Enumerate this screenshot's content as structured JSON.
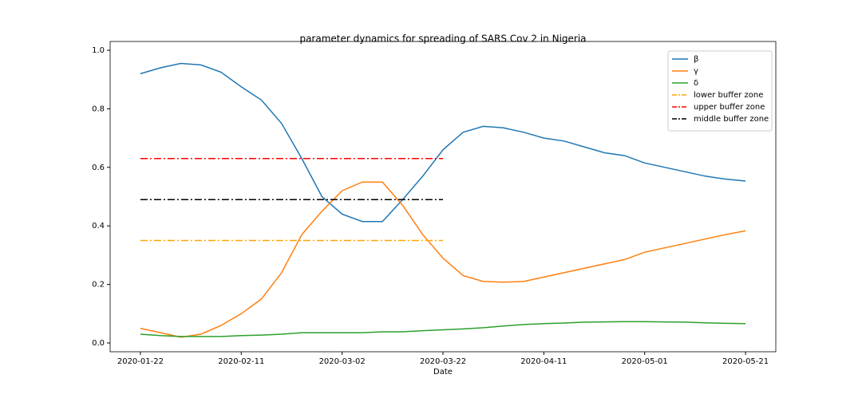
{
  "chart_data": {
    "type": "line",
    "title": "parameter dynamics for spreading of SARS Cov 2 in Nigeria",
    "x_label": "Date",
    "x": [
      "2020-01-22",
      "2020-01-26",
      "2020-01-30",
      "2020-02-03",
      "2020-02-07",
      "2020-02-11",
      "2020-02-15",
      "2020-02-19",
      "2020-02-23",
      "2020-02-27",
      "2020-03-02",
      "2020-03-06",
      "2020-03-10",
      "2020-03-14",
      "2020-03-18",
      "2020-03-22",
      "2020-03-26",
      "2020-03-30",
      "2020-04-03",
      "2020-04-07",
      "2020-04-11",
      "2020-04-15",
      "2020-04-19",
      "2020-04-23",
      "2020-04-27",
      "2020-05-01",
      "2020-05-05",
      "2020-05-09",
      "2020-05-13",
      "2020-05-17",
      "2020-05-21"
    ],
    "series": [
      {
        "name": "β",
        "color": "#1f77b4",
        "style": "solid",
        "values": [
          0.92,
          0.94,
          0.955,
          0.95,
          0.925,
          0.875,
          0.83,
          0.75,
          0.63,
          0.5,
          0.44,
          0.415,
          0.415,
          0.49,
          0.57,
          0.66,
          0.72,
          0.74,
          0.735,
          0.72,
          0.7,
          0.69,
          0.67,
          0.65,
          0.64,
          0.615,
          0.6,
          0.585,
          0.57,
          0.56,
          0.553
        ]
      },
      {
        "name": "γ",
        "color": "#ff7f0e",
        "style": "solid",
        "values": [
          0.05,
          0.035,
          0.02,
          0.03,
          0.06,
          0.1,
          0.15,
          0.24,
          0.37,
          0.45,
          0.52,
          0.55,
          0.55,
          0.47,
          0.37,
          0.29,
          0.23,
          0.21,
          0.208,
          0.21,
          0.225,
          0.24,
          0.255,
          0.27,
          0.285,
          0.31,
          0.325,
          0.34,
          0.355,
          0.37,
          0.383
        ]
      },
      {
        "name": "δ",
        "color": "#2ca02c",
        "style": "solid",
        "values": [
          0.03,
          0.025,
          0.022,
          0.022,
          0.022,
          0.025,
          0.027,
          0.03,
          0.035,
          0.035,
          0.035,
          0.035,
          0.038,
          0.038,
          0.042,
          0.045,
          0.048,
          0.052,
          0.058,
          0.063,
          0.066,
          0.068,
          0.071,
          0.072,
          0.073,
          0.073,
          0.072,
          0.071,
          0.069,
          0.067,
          0.066
        ]
      },
      {
        "name": "lower buffer zone",
        "color": "#ffa500",
        "style": "dashdot",
        "x": [
          "2020-01-22",
          "2020-03-22"
        ],
        "values": [
          0.35,
          0.35
        ]
      },
      {
        "name": "upper buffer zone",
        "color": "#ff0000",
        "style": "dashdot",
        "x": [
          "2020-01-22",
          "2020-03-22"
        ],
        "values": [
          0.63,
          0.63
        ]
      },
      {
        "name": "middle buffer zone",
        "color": "#000000",
        "style": "dashdot",
        "x": [
          "2020-01-22",
          "2020-03-22"
        ],
        "values": [
          0.49,
          0.49
        ]
      }
    ],
    "xlim": [
      "2020-01-16",
      "2020-05-27"
    ],
    "xticks": [
      "2020-01-22",
      "2020-02-11",
      "2020-03-02",
      "2020-03-22",
      "2020-04-11",
      "2020-05-01",
      "2020-05-21"
    ],
    "ylim": [
      -0.03,
      1.03
    ],
    "yticks": [
      {
        "value": 0,
        "label": "0.0"
      },
      0.2,
      0.4,
      0.6,
      0.8,
      {
        "value": 1,
        "label": "1.0"
      }
    ],
    "legend": "upper right"
  }
}
